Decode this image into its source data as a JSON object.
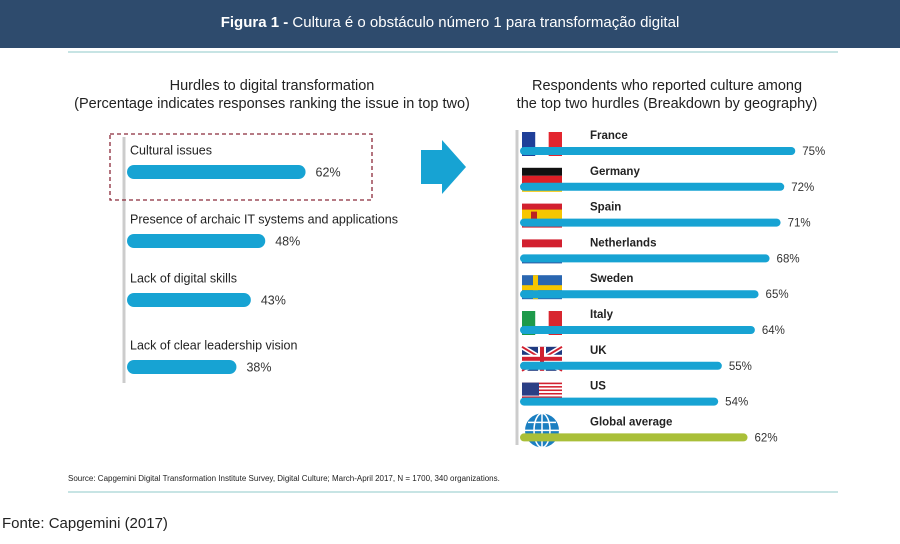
{
  "header": {
    "label": "Figura 1 -",
    "title": "Cultura é o obstáculo número 1 para transformação digital"
  },
  "chart_data": [
    {
      "type": "bar",
      "title": "Hurdles to digital transformation",
      "subtitle": "(Percentage indicates responses ranking the issue in top two)",
      "categories": [
        "Cultural issues",
        "Presence of archaic IT systems and applications",
        "Lack of digital skills",
        "Lack of clear leadership vision"
      ],
      "values": [
        62,
        48,
        43,
        38
      ],
      "value_labels": [
        "62%",
        "48%",
        "43%",
        "38%"
      ],
      "color": "#17a3d3"
    },
    {
      "type": "bar",
      "title": "Respondents who reported culture among",
      "subtitle": "the top two hurdles (Breakdown by geography)",
      "categories": [
        "France",
        "Germany",
        "Spain",
        "Netherlands",
        "Sweden",
        "Italy",
        "UK",
        "US",
        "Global average"
      ],
      "values": [
        75,
        72,
        71,
        68,
        65,
        64,
        55,
        54,
        62
      ],
      "value_labels": [
        "75%",
        "72%",
        "71%",
        "68%",
        "65%",
        "64%",
        "55%",
        "54%",
        "62%"
      ],
      "colors": [
        "#17a3d3",
        "#17a3d3",
        "#17a3d3",
        "#17a3d3",
        "#17a3d3",
        "#17a3d3",
        "#17a3d3",
        "#17a3d3",
        "#a9bf38"
      ]
    }
  ],
  "source": "Source: Capgemini Digital Transformation Institute Survey, Digital Culture; March-April 2017, N = 1700, 340 organizations.",
  "footer": "Fonte: Capgemini (2017)"
}
